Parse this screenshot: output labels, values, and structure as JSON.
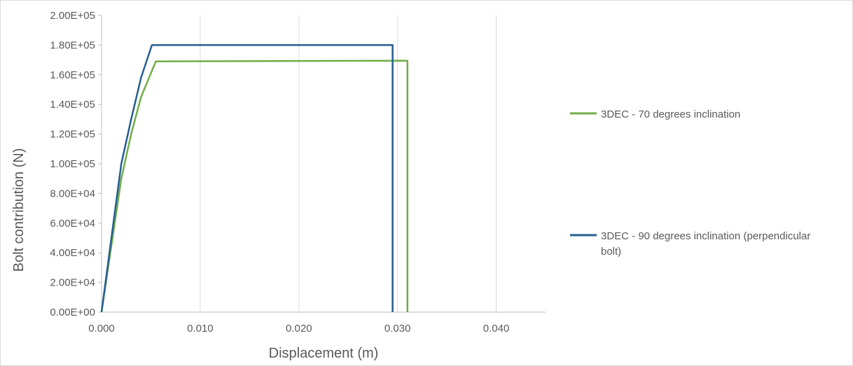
{
  "chart_data": {
    "type": "line",
    "xlabel": "Displacement (m)",
    "ylabel": "Bolt contribution (N)",
    "xlim": [
      0,
      0.045
    ],
    "ylim": [
      0,
      200000
    ],
    "x_ticks": [
      0,
      0.01,
      0.02,
      0.03,
      0.04
    ],
    "x_tick_labels": [
      "0.000",
      "0.010",
      "0.020",
      "0.030",
      "0.040"
    ],
    "y_ticks": [
      0,
      20000,
      40000,
      60000,
      80000,
      100000,
      120000,
      140000,
      160000,
      180000,
      200000
    ],
    "y_tick_labels": [
      "0.00E+00",
      "2.00E+04",
      "4.00E+04",
      "6.00E+04",
      "8.00E+04",
      "1.00E+05",
      "1.20E+05",
      "1.40E+05",
      "1.60E+05",
      "1.80E+05",
      "2.00E+05"
    ],
    "grid": "vertical",
    "legend_placement": "right",
    "series": [
      {
        "name": "3DEC - 70 degrees inclination",
        "color": "#70ad47",
        "points": [
          [
            0,
            0
          ],
          [
            0.001,
            45000
          ],
          [
            0.002,
            90000
          ],
          [
            0.003,
            120000
          ],
          [
            0.004,
            145000
          ],
          [
            0.0055,
            169000
          ],
          [
            0.031,
            169500
          ],
          [
            0.031,
            0
          ]
        ]
      },
      {
        "name": "3DEC - 90 degrees inclination (perpendicular bolt)",
        "color": "#255e91",
        "points": [
          [
            0,
            0
          ],
          [
            0.001,
            50000
          ],
          [
            0.002,
            100000
          ],
          [
            0.003,
            130000
          ],
          [
            0.004,
            158000
          ],
          [
            0.0051,
            180000
          ],
          [
            0.0295,
            180000
          ],
          [
            0.0295,
            0
          ]
        ]
      }
    ],
    "legend_lines": [
      [
        "3DEC - 70 degrees inclination"
      ],
      [
        "3DEC - 90 degrees inclination (perpendicular",
        "bolt)"
      ]
    ]
  }
}
